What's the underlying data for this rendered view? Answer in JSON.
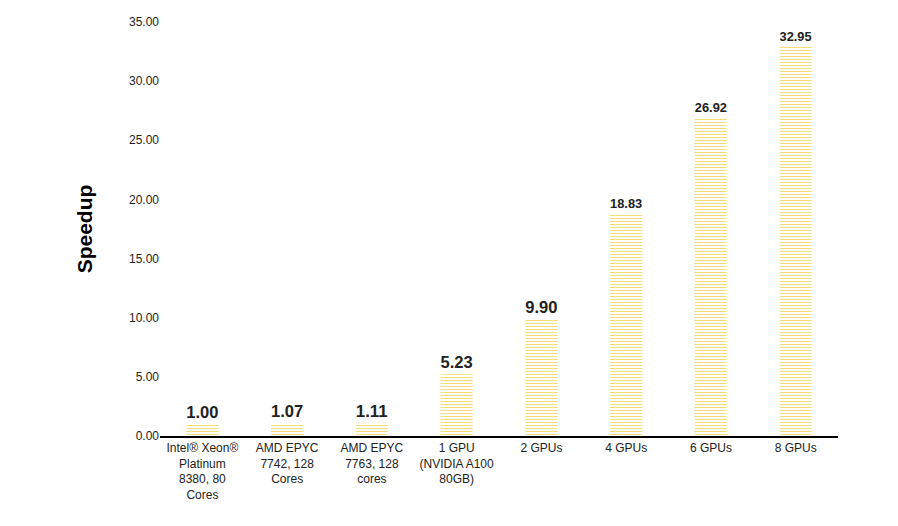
{
  "chart_data": {
    "type": "bar",
    "y_label": "Speedup",
    "categories": [
      "Intel® Xeon®\nPlatinum\n8380, 80\nCores",
      "AMD EPYC\n7742, 128\nCores",
      "AMD EPYC\n7763, 128\ncores",
      "1 GPU\n(NVIDIA A100\n80GB)",
      "2 GPUs",
      "4 GPUs",
      "6 GPUs",
      "8 GPUs"
    ],
    "values": [
      1.0,
      1.07,
      1.11,
      5.23,
      9.9,
      18.83,
      26.92,
      32.95
    ],
    "value_labels": [
      "1.00",
      "1.07",
      "1.11",
      "5.23",
      "9.90",
      "18.83",
      "26.92",
      "32.95"
    ],
    "color": "#f0bf2c",
    "ylim": [
      0,
      35
    ],
    "yticks": [
      {
        "value": 0,
        "label": "0.00"
      },
      {
        "value": 5,
        "label": "5.00"
      },
      {
        "value": 10,
        "label": "10.00"
      },
      {
        "value": 15,
        "label": "15.00"
      },
      {
        "value": 20,
        "label": "20.00"
      },
      {
        "value": 25,
        "label": "25.00"
      },
      {
        "value": 30,
        "label": "30.00"
      },
      {
        "value": 35,
        "label": "35.00"
      }
    ],
    "grid": false,
    "data_labels": true
  }
}
